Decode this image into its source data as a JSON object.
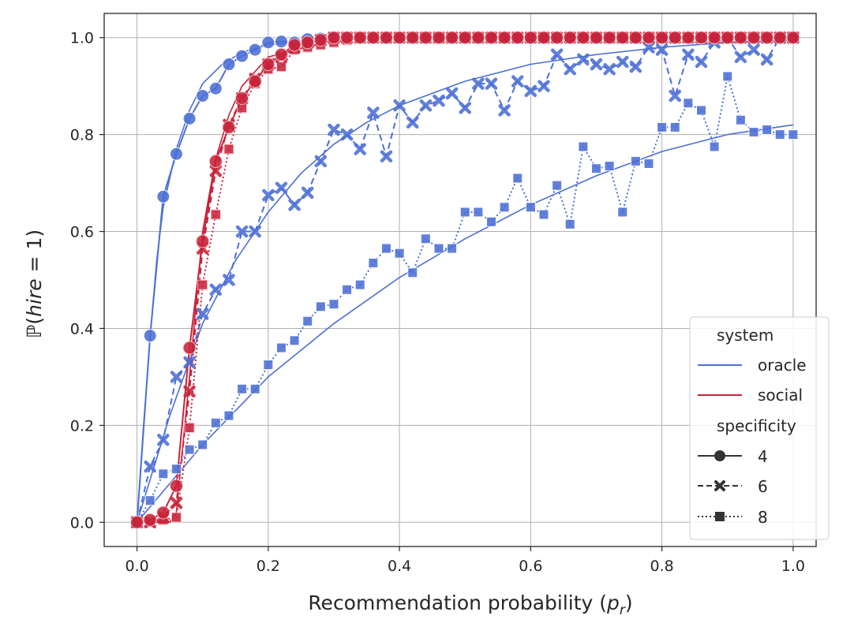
{
  "chart_data": {
    "type": "line",
    "xlabel": "Recommendation probability (p_r)",
    "xlabel_parts": {
      "main": "Recommendation probability (",
      "italic": "p",
      "sub": "r",
      "close": ")"
    },
    "ylabel": "ℙ(hire = 1)",
    "ylabel_parts": {
      "prefix": "ℙ(",
      "italic": "hire",
      "suffix": " = 1)"
    },
    "xlim": [
      -0.05,
      1.035
    ],
    "ylim": [
      -0.05,
      1.05
    ],
    "xticks": [
      "0.0",
      "0.2",
      "0.4",
      "0.6",
      "0.8",
      "1.0"
    ],
    "yticks": [
      "0.0",
      "0.2",
      "0.4",
      "0.6",
      "0.8",
      "1.0"
    ],
    "grid": true,
    "legend": {
      "position": "lower-right",
      "hue_title": "system",
      "hue_entries": [
        {
          "label": "oracle",
          "color": "#4c6fd6"
        },
        {
          "label": "social",
          "color": "#c8233a"
        }
      ],
      "style_title": "specificity",
      "style_entries": [
        {
          "label": "4",
          "marker": "circle",
          "dash": "solid"
        },
        {
          "label": "6",
          "marker": "cross",
          "dash": "dashed"
        },
        {
          "label": "8",
          "marker": "square",
          "dash": "dotted"
        }
      ]
    },
    "colors": {
      "oracle": "#4c6fd6",
      "social": "#c8233a",
      "edge_oracle": "#ffffff",
      "edge_social": "#f3c6cc"
    },
    "x": [
      0.0,
      0.02,
      0.04,
      0.06,
      0.08,
      0.1,
      0.12,
      0.14,
      0.16,
      0.18,
      0.2,
      0.22,
      0.24,
      0.26,
      0.28,
      0.3,
      0.32,
      0.34,
      0.36,
      0.38,
      0.4,
      0.42,
      0.44,
      0.46,
      0.48,
      0.5,
      0.52,
      0.54,
      0.56,
      0.58,
      0.6,
      0.62,
      0.64,
      0.66,
      0.68,
      0.7,
      0.72,
      0.74,
      0.76,
      0.78,
      0.8,
      0.82,
      0.84,
      0.86,
      0.88,
      0.9,
      0.92,
      0.94,
      0.96,
      0.98,
      1.0
    ],
    "series": [
      {
        "name": "oracle-4",
        "system": "oracle",
        "specificity": "4",
        "marker": "circle",
        "values": [
          0.0,
          0.385,
          0.672,
          0.76,
          0.833,
          0.88,
          0.895,
          0.945,
          0.962,
          0.975,
          0.99,
          0.992,
          0.99,
          0.997,
          0.998,
          1.0,
          1.0,
          1.0,
          1.0,
          1.0,
          1.0,
          1.0,
          1.0,
          1.0,
          1.0,
          1.0,
          1.0,
          1.0,
          1.0,
          1.0,
          1.0,
          1.0,
          1.0,
          1.0,
          1.0,
          1.0,
          1.0,
          1.0,
          1.0,
          1.0,
          1.0,
          1.0,
          1.0,
          1.0,
          1.0,
          1.0,
          1.0,
          1.0,
          1.0,
          1.0,
          1.0
        ]
      },
      {
        "name": "oracle-6",
        "system": "oracle",
        "specificity": "6",
        "marker": "cross",
        "values": [
          0.0,
          0.115,
          0.17,
          0.3,
          0.33,
          0.43,
          0.48,
          0.5,
          0.6,
          0.6,
          0.675,
          0.69,
          0.655,
          0.68,
          0.745,
          0.81,
          0.8,
          0.77,
          0.845,
          0.755,
          0.86,
          0.825,
          0.86,
          0.87,
          0.885,
          0.855,
          0.905,
          0.905,
          0.85,
          0.91,
          0.89,
          0.9,
          0.965,
          0.935,
          0.955,
          0.945,
          0.935,
          0.95,
          0.94,
          0.98,
          0.975,
          0.88,
          0.965,
          0.95,
          0.99,
          1.0,
          0.96,
          0.975,
          0.955,
          1.0,
          1.0
        ]
      },
      {
        "name": "oracle-8",
        "system": "oracle",
        "specificity": "8",
        "marker": "square",
        "values": [
          0.0,
          0.045,
          0.1,
          0.11,
          0.15,
          0.16,
          0.205,
          0.22,
          0.275,
          0.275,
          0.325,
          0.36,
          0.375,
          0.415,
          0.445,
          0.45,
          0.48,
          0.49,
          0.535,
          0.565,
          0.555,
          0.515,
          0.585,
          0.565,
          0.565,
          0.64,
          0.64,
          0.62,
          0.65,
          0.71,
          0.65,
          0.635,
          0.695,
          0.615,
          0.775,
          0.73,
          0.735,
          0.64,
          0.745,
          0.74,
          0.815,
          0.815,
          0.865,
          0.85,
          0.775,
          0.92,
          0.83,
          0.805,
          0.81,
          0.8,
          0.8
        ]
      },
      {
        "name": "social-4",
        "system": "social",
        "specificity": "4",
        "marker": "circle",
        "values": [
          0.0,
          0.005,
          0.02,
          0.075,
          0.36,
          0.58,
          0.745,
          0.815,
          0.875,
          0.91,
          0.945,
          0.965,
          0.985,
          0.99,
          0.995,
          1.0,
          1.0,
          1.0,
          1.0,
          1.0,
          1.0,
          1.0,
          1.0,
          1.0,
          1.0,
          1.0,
          1.0,
          1.0,
          1.0,
          1.0,
          1.0,
          1.0,
          1.0,
          1.0,
          1.0,
          1.0,
          1.0,
          1.0,
          1.0,
          1.0,
          1.0,
          1.0,
          1.0,
          1.0,
          1.0,
          1.0,
          1.0,
          1.0,
          1.0,
          1.0,
          1.0
        ]
      },
      {
        "name": "social-6",
        "system": "social",
        "specificity": "6",
        "marker": "cross",
        "values": [
          0.0,
          0.0,
          0.01,
          0.04,
          0.27,
          0.565,
          0.725,
          0.82,
          0.875,
          0.915,
          0.945,
          0.96,
          0.98,
          0.99,
          0.995,
          1.0,
          1.0,
          1.0,
          1.0,
          1.0,
          1.0,
          1.0,
          1.0,
          1.0,
          1.0,
          1.0,
          1.0,
          1.0,
          1.0,
          1.0,
          1.0,
          1.0,
          1.0,
          1.0,
          1.0,
          1.0,
          1.0,
          1.0,
          1.0,
          1.0,
          1.0,
          1.0,
          1.0,
          1.0,
          1.0,
          1.0,
          1.0,
          1.0,
          1.0,
          1.0,
          1.0
        ]
      },
      {
        "name": "social-8",
        "system": "social",
        "specificity": "8",
        "marker": "square",
        "values": [
          0.0,
          0.0,
          0.005,
          0.01,
          0.195,
          0.49,
          0.635,
          0.77,
          0.855,
          0.905,
          0.935,
          0.94,
          0.975,
          0.98,
          0.985,
          0.99,
          0.995,
          1.0,
          1.0,
          1.0,
          1.0,
          1.0,
          1.0,
          1.0,
          1.0,
          1.0,
          1.0,
          1.0,
          1.0,
          1.0,
          1.0,
          1.0,
          1.0,
          1.0,
          1.0,
          1.0,
          1.0,
          1.0,
          1.0,
          1.0,
          1.0,
          1.0,
          1.0,
          1.0,
          1.0,
          1.0,
          1.0,
          1.0,
          1.0,
          1.0,
          1.0
        ]
      }
    ],
    "fit_curves": [
      {
        "name": "oracle-4-fit",
        "system": "oracle",
        "x": [
          0.0,
          0.01,
          0.02,
          0.03,
          0.04,
          0.06,
          0.08,
          0.1,
          0.13,
          0.16,
          0.2,
          0.25,
          0.3,
          0.4,
          0.5,
          0.6,
          0.8,
          1.0
        ],
        "values": [
          0.0,
          0.2,
          0.38,
          0.54,
          0.65,
          0.77,
          0.85,
          0.905,
          0.945,
          0.97,
          0.985,
          0.993,
          0.997,
          1.0,
          1.0,
          1.0,
          1.0,
          1.0
        ]
      },
      {
        "name": "oracle-6-fit",
        "system": "oracle",
        "x": [
          0.0,
          0.05,
          0.1,
          0.15,
          0.2,
          0.25,
          0.3,
          0.35,
          0.4,
          0.5,
          0.6,
          0.7,
          0.8,
          0.9,
          1.0
        ],
        "values": [
          0.0,
          0.22,
          0.41,
          0.54,
          0.64,
          0.72,
          0.78,
          0.825,
          0.86,
          0.91,
          0.945,
          0.965,
          0.98,
          0.99,
          0.995
        ]
      },
      {
        "name": "oracle-8-fit",
        "system": "oracle",
        "x": [
          0.0,
          0.1,
          0.2,
          0.3,
          0.4,
          0.5,
          0.6,
          0.7,
          0.8,
          0.9,
          1.0
        ],
        "values": [
          0.0,
          0.16,
          0.3,
          0.41,
          0.505,
          0.585,
          0.655,
          0.715,
          0.765,
          0.8,
          0.82
        ]
      },
      {
        "name": "social-4-fit",
        "system": "social",
        "x": [
          0.0,
          0.05,
          0.06,
          0.08,
          0.1,
          0.12,
          0.14,
          0.16,
          0.2,
          0.3,
          0.4,
          0.6,
          1.0
        ],
        "values": [
          0.0,
          0.0,
          0.02,
          0.3,
          0.6,
          0.75,
          0.84,
          0.9,
          0.96,
          0.995,
          1.0,
          1.0,
          1.0
        ]
      }
    ]
  }
}
